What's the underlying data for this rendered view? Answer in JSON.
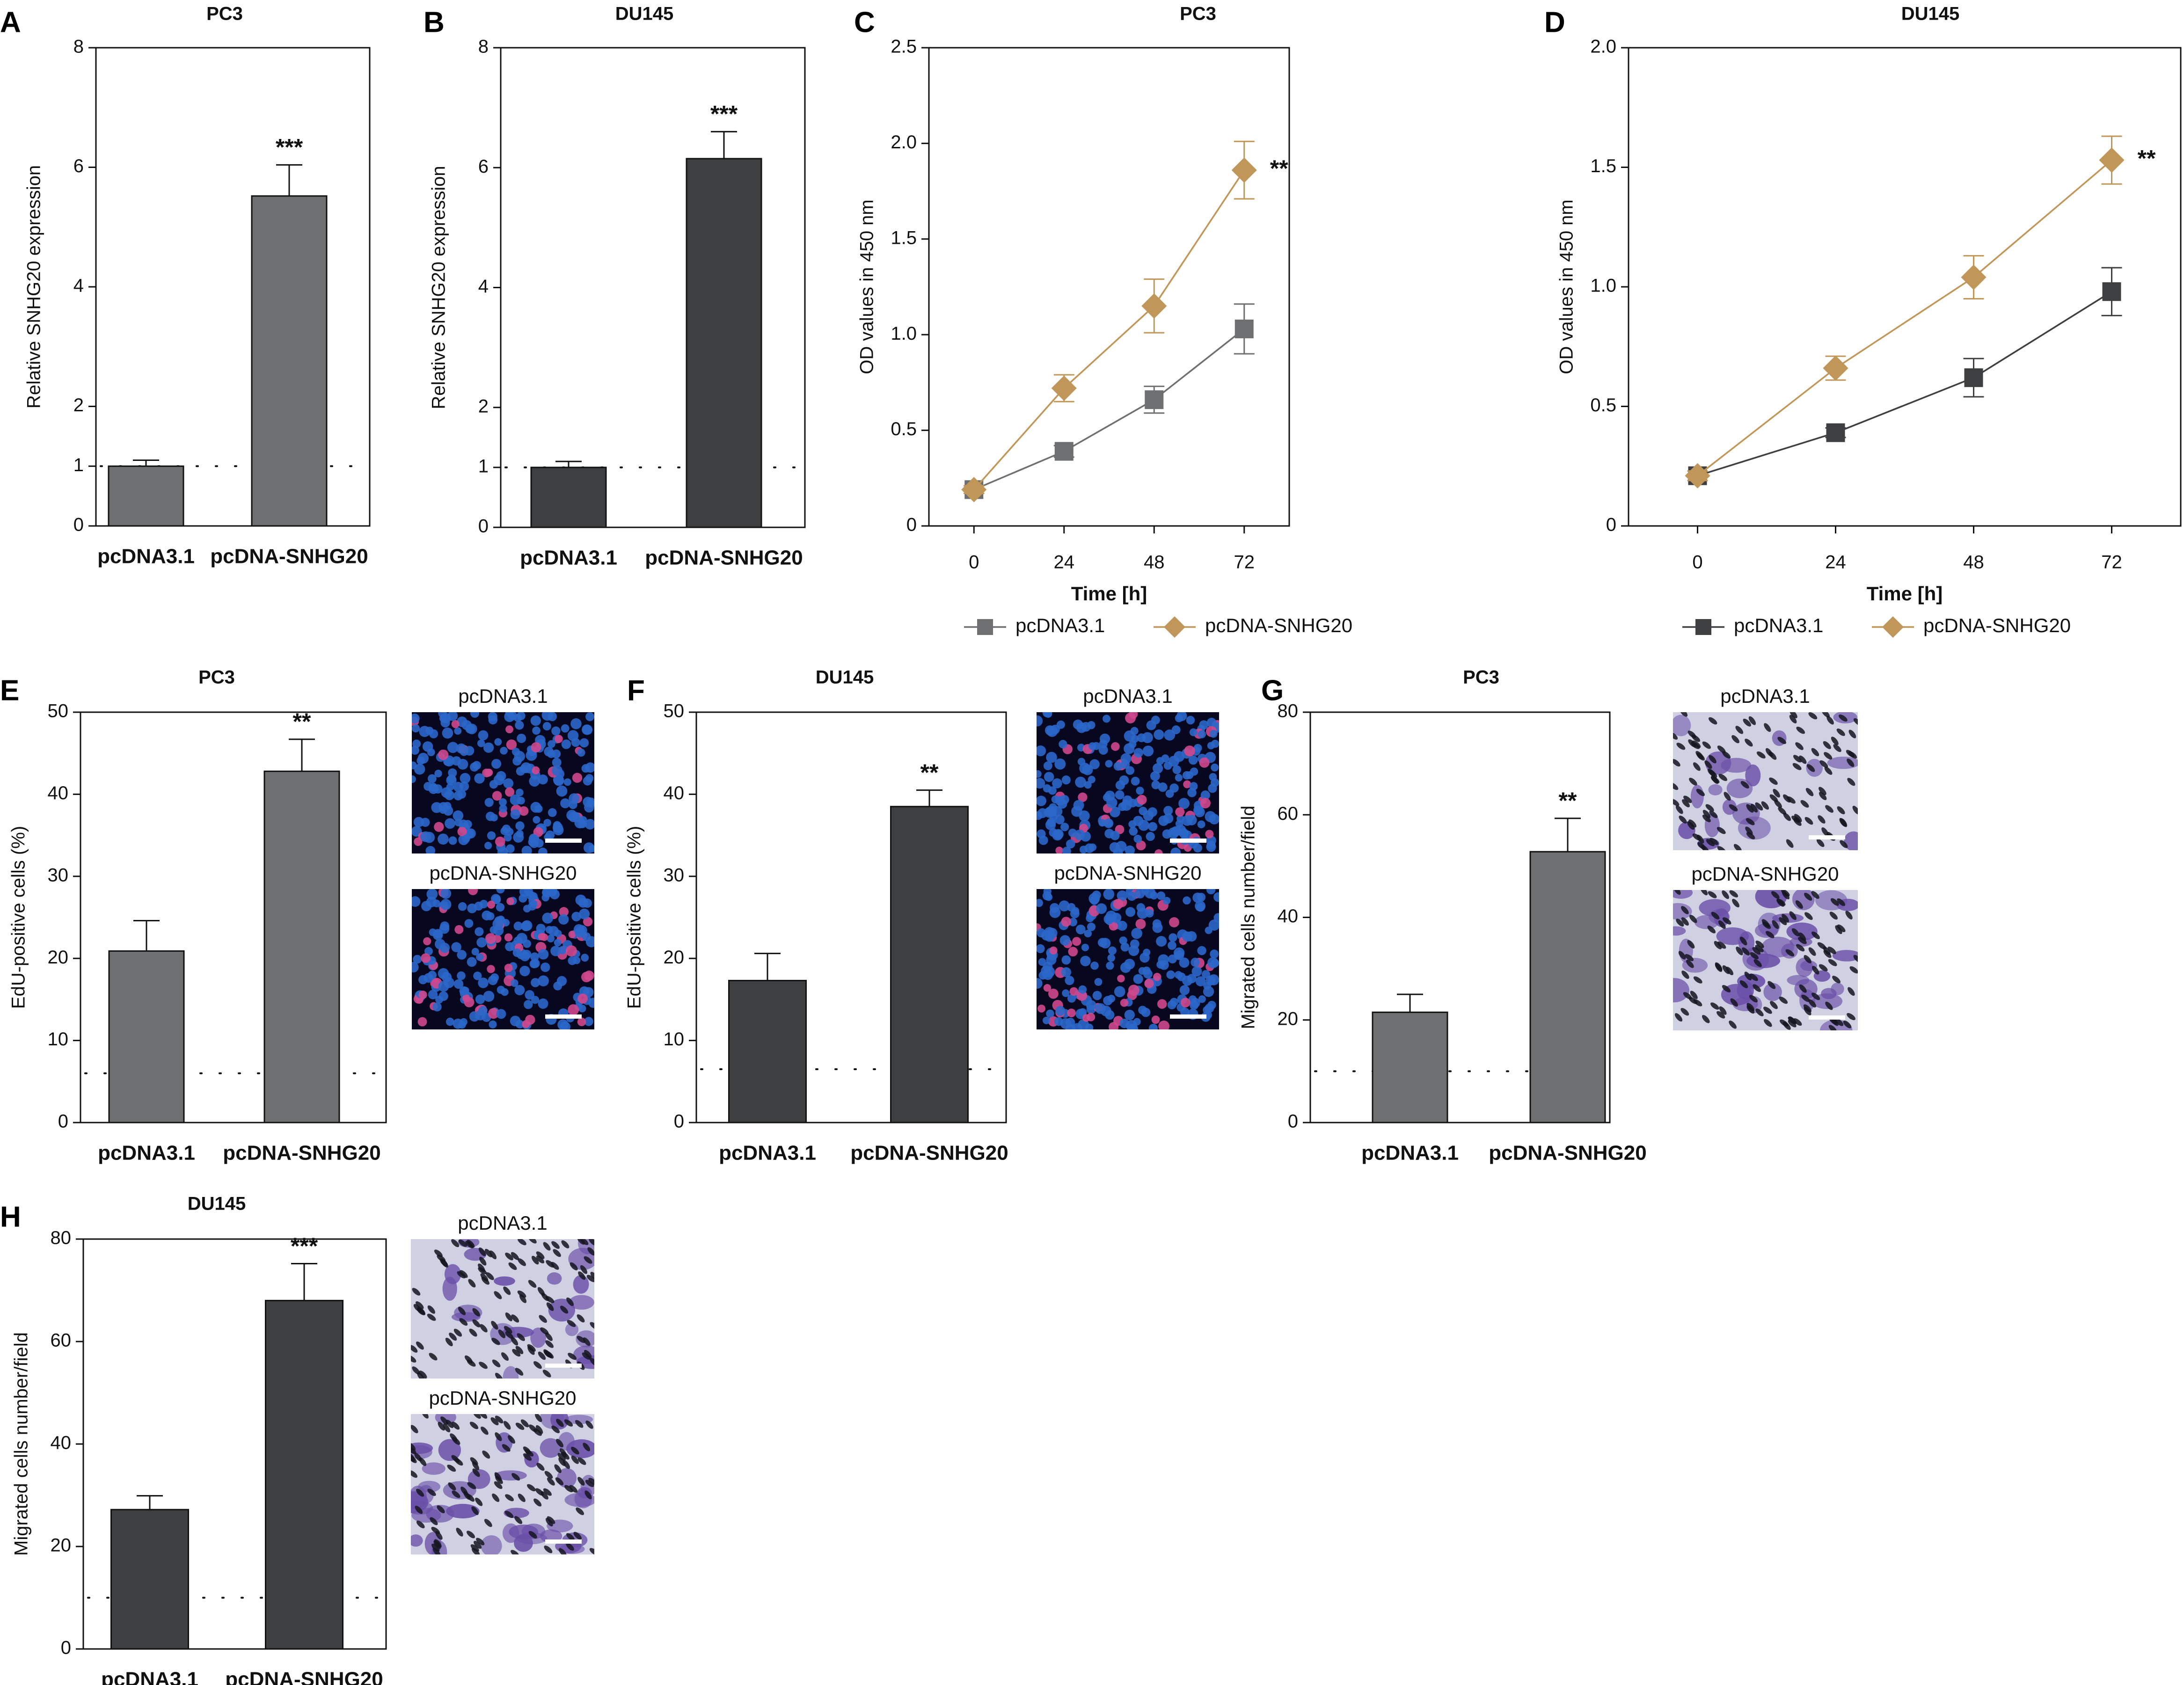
{
  "colors": {
    "gray_bar": "#6e6f71",
    "dark_bar": "#3e3f41",
    "gold_line": "#c19659",
    "gray_line": "#6e6f71",
    "dark_line": "#3e3f41",
    "edu_bg": "#07071f",
    "edu_nucleus": "#2b67c9",
    "edu_positive": "#d0488e",
    "stain_bg": "#cfd0e2",
    "stain_cell": "#6a4fa8",
    "stain_pore": "#151520"
  },
  "chart_data": [
    {
      "id": "A",
      "type": "bar",
      "panel_letter": "A",
      "title": "PC3",
      "ylabel": "Relative SNHG20 expression",
      "xlabel": "",
      "ylim": [
        0,
        8
      ],
      "yticks": [
        0,
        1,
        2,
        4,
        6,
        8
      ],
      "categories": [
        "pcDNA3.1",
        "pcDNA-SNHG20"
      ],
      "values": [
        1.0,
        5.52
      ],
      "errors": [
        0.1,
        0.52
      ],
      "significance": [
        "",
        "***"
      ],
      "reference_line": 1,
      "bar_color": "gray"
    },
    {
      "id": "B",
      "type": "bar",
      "panel_letter": "B",
      "title": "DU145",
      "ylabel": "Relative SNHG20 expression",
      "xlabel": "",
      "ylim": [
        0,
        8
      ],
      "yticks": [
        0,
        1,
        2,
        4,
        6,
        8
      ],
      "categories": [
        "pcDNA3.1",
        "pcDNA-SNHG20"
      ],
      "values": [
        1.0,
        6.15
      ],
      "errors": [
        0.1,
        0.45
      ],
      "significance": [
        "",
        "***"
      ],
      "reference_line": 1,
      "bar_color": "dark"
    },
    {
      "id": "C",
      "type": "line",
      "panel_letter": "C",
      "title": "PC3",
      "xlabel": "Time [h]",
      "ylabel": "OD values in 450 nm",
      "x": [
        0,
        24,
        48,
        72
      ],
      "xlim": [
        -12,
        84
      ],
      "ylim": [
        0,
        2.5
      ],
      "yticks": [
        0,
        0.5,
        1.0,
        1.5,
        2.0,
        2.5
      ],
      "ytick_labels": [
        "0",
        "0.5",
        "1.0",
        "1.5",
        "2.0",
        "2.5"
      ],
      "series": [
        {
          "name": "pcDNA3.1",
          "values": [
            0.19,
            0.39,
            0.66,
            1.03
          ],
          "errors": [
            0.02,
            0.03,
            0.07,
            0.13
          ],
          "marker": "square",
          "color": "gray"
        },
        {
          "name": "pcDNA-SNHG20",
          "values": [
            0.19,
            0.72,
            1.15,
            1.86
          ],
          "errors": [
            0.02,
            0.07,
            0.14,
            0.15
          ],
          "marker": "diamond",
          "color": "gold"
        }
      ],
      "significance": "**",
      "legend_position": "bottom"
    },
    {
      "id": "D",
      "type": "line",
      "panel_letter": "D",
      "title": "DU145",
      "xlabel": "Time [h]",
      "ylabel": "OD values in 450 nm",
      "x": [
        0,
        24,
        48,
        72
      ],
      "xlim": [
        -12,
        84
      ],
      "ylim": [
        0,
        2.0
      ],
      "yticks": [
        0,
        0.5,
        1.0,
        1.5,
        2.0
      ],
      "ytick_labels": [
        "0",
        "0.5",
        "1.0",
        "1.5",
        "2.0"
      ],
      "series": [
        {
          "name": "pcDNA3.1",
          "values": [
            0.21,
            0.39,
            0.62,
            0.98
          ],
          "errors": [
            0.02,
            0.02,
            0.08,
            0.1
          ],
          "marker": "square",
          "color": "dark"
        },
        {
          "name": "pcDNA-SNHG20",
          "values": [
            0.21,
            0.66,
            1.04,
            1.53
          ],
          "errors": [
            0.02,
            0.05,
            0.09,
            0.1
          ],
          "marker": "diamond",
          "color": "gold"
        }
      ],
      "significance": "**",
      "legend_position": "bottom"
    },
    {
      "id": "E",
      "type": "bar",
      "panel_letter": "E",
      "title": "PC3",
      "ylabel": "EdU-positive cells (%)",
      "xlabel": "",
      "ylim": [
        0,
        50
      ],
      "yticks": [
        0,
        10,
        20,
        30,
        40,
        50
      ],
      "categories": [
        "pcDNA3.1",
        "pcDNA-SNHG20"
      ],
      "values": [
        20.9,
        42.8
      ],
      "errors": [
        3.7,
        3.9
      ],
      "significance": [
        "",
        "**"
      ],
      "reference_line": 6,
      "bar_color": "gray",
      "images": [
        {
          "label": "pcDNA3.1",
          "kind": "edu",
          "density": 0.12
        },
        {
          "label": "pcDNA-SNHG20",
          "kind": "edu",
          "density": 0.2
        }
      ]
    },
    {
      "id": "F",
      "type": "bar",
      "panel_letter": "F",
      "title": "DU145",
      "ylabel": "EdU-positive cells (%)",
      "xlabel": "",
      "ylim": [
        0,
        50
      ],
      "yticks": [
        0,
        10,
        20,
        30,
        40,
        50
      ],
      "categories": [
        "pcDNA3.1",
        "pcDNA-SNHG20"
      ],
      "values": [
        17.3,
        38.5
      ],
      "errors": [
        3.3,
        2.0
      ],
      "significance": [
        "",
        "**"
      ],
      "reference_line": 6.5,
      "bar_color": "dark",
      "images": [
        {
          "label": "pcDNA3.1",
          "kind": "edu",
          "density": 0.12
        },
        {
          "label": "pcDNA-SNHG20",
          "kind": "edu",
          "density": 0.2
        }
      ]
    },
    {
      "id": "G",
      "type": "bar",
      "panel_letter": "G",
      "title": "PC3",
      "ylabel": "Migrated cells number/field",
      "xlabel": "",
      "ylim": [
        0,
        80
      ],
      "yticks": [
        0,
        20,
        40,
        60,
        80
      ],
      "categories": [
        "pcDNA3.1",
        "pcDNA-SNHG20"
      ],
      "values": [
        21.5,
        52.8
      ],
      "errors": [
        3.5,
        6.5
      ],
      "significance": [
        "",
        "**"
      ],
      "reference_line": 10,
      "bar_color": "gray",
      "images": [
        {
          "label": "pcDNA3.1",
          "kind": "stain",
          "density": 0.3
        },
        {
          "label": "pcDNA-SNHG20",
          "kind": "stain",
          "density": 0.7
        }
      ]
    },
    {
      "id": "H",
      "type": "bar",
      "panel_letter": "H",
      "title": "DU145",
      "ylabel": "Migrated cells number/field",
      "xlabel": "",
      "ylim": [
        0,
        80
      ],
      "yticks": [
        0,
        20,
        40,
        60,
        80
      ],
      "categories": [
        "pcDNA3.1",
        "pcDNA-SNHG20"
      ],
      "values": [
        27.2,
        68.0
      ],
      "errors": [
        2.7,
        7.2
      ],
      "significance": [
        "",
        "***"
      ],
      "reference_line": 10,
      "bar_color": "dark",
      "images": [
        {
          "label": "pcDNA3.1",
          "kind": "stain",
          "density": 0.35
        },
        {
          "label": "pcDNA-SNHG20",
          "kind": "stain",
          "density": 0.75
        }
      ]
    }
  ]
}
